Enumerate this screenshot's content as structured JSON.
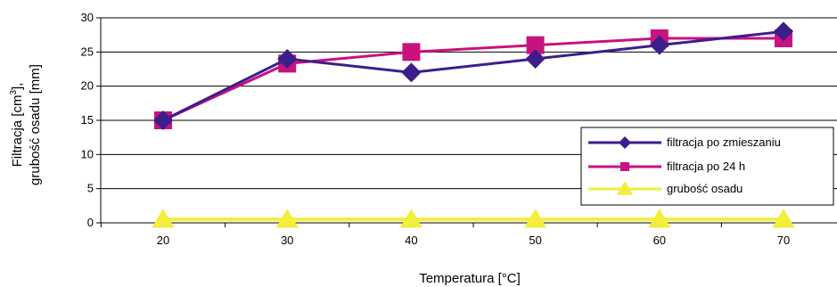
{
  "chart_data": {
    "type": "line",
    "title": "",
    "xlabel": "Temperatura [°C]",
    "ylabel_line1": "Filtracja [cm",
    "ylabel_sup": "3",
    "ylabel_line1_end": "],",
    "ylabel_line2": "grubość osadu [mm]",
    "x": [
      20,
      30,
      40,
      50,
      60,
      70
    ],
    "ylim": [
      0,
      30
    ],
    "yticks": [
      0,
      5,
      10,
      15,
      20,
      25,
      30
    ],
    "grid": "horizontal",
    "legend_position": "right",
    "series": [
      {
        "name": "filtracja po zmieszaniu",
        "values": [
          15,
          24,
          22,
          24,
          26,
          28
        ],
        "color": "#3b1e8c",
        "marker": "diamond"
      },
      {
        "name": "filtracja po 24 h",
        "values": [
          15,
          23.3,
          25,
          26,
          27,
          27
        ],
        "color": "#c8127f",
        "marker": "square"
      },
      {
        "name": "grubość osadu",
        "values": [
          0.5,
          0.5,
          0.5,
          0.5,
          0.5,
          0.5
        ],
        "color": "#f2ee3a",
        "marker": "triangle"
      }
    ]
  }
}
